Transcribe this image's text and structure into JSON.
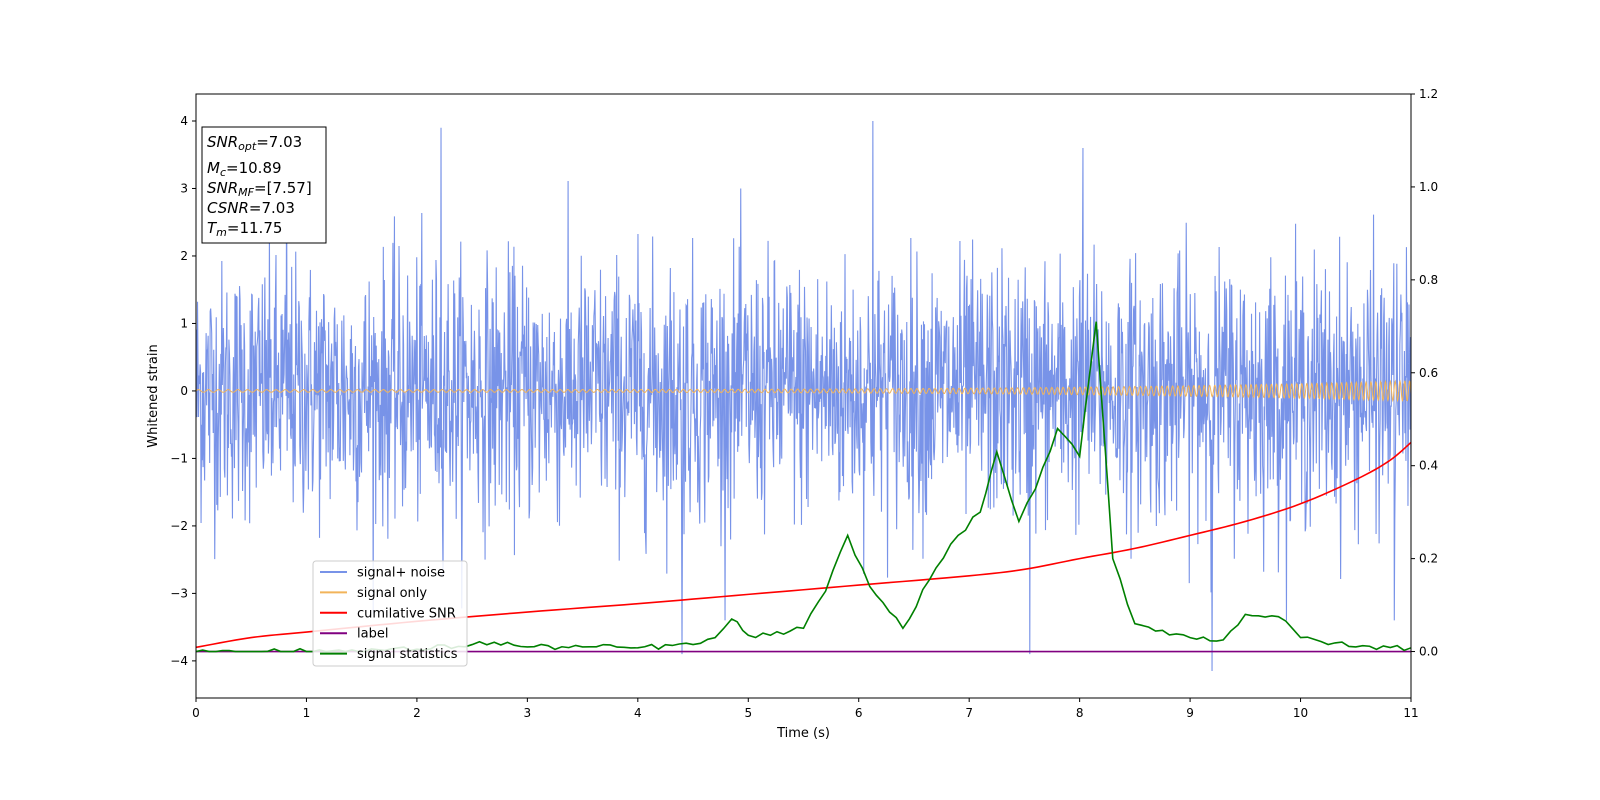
{
  "chart_data": {
    "type": "line",
    "xlabel": "Time (s)",
    "ylabel": "Whitened strain",
    "xlim": [
      0,
      11
    ],
    "ylim": [
      -4.55,
      4.4
    ],
    "y2lim": [
      -0.1,
      1.2
    ],
    "xticks": [
      "0",
      "1",
      "2",
      "3",
      "4",
      "5",
      "6",
      "7",
      "8",
      "9",
      "10",
      "11"
    ],
    "yticks": [
      "4",
      "3",
      "2",
      "1",
      "0",
      "−1",
      "−2",
      "−3",
      "−4"
    ],
    "y2ticks": [
      "1.2",
      "1.0",
      "0.8",
      "0.6",
      "0.4",
      "0.2",
      "0.0"
    ],
    "grid": false,
    "legend_position": "lower-left",
    "stats_box": [
      {
        "sym": "SNR",
        "sub": "opt",
        "text": "=7.03"
      },
      {
        "sym": "M",
        "sub": "c",
        "text": "=10.89"
      },
      {
        "sym": "SNR",
        "sub": "MF",
        "text": "=[7.57]"
      },
      {
        "sym": "CSNR",
        "sub": "",
        "text": "=7.03"
      },
      {
        "sym": "T",
        "sub": "m",
        "text": "=11.75"
      }
    ],
    "series": [
      {
        "name": "signal+ noise",
        "color": "#7893e8",
        "axis": "left",
        "description": "dense gaussian noise, mostly within about ±2.5, spikes to about 4.0 and -4.2",
        "noise_sd": 1.0,
        "spikes": [
          [
            2.22,
            3.9
          ],
          [
            6.13,
            4.0
          ],
          [
            4.4,
            -3.9
          ],
          [
            7.55,
            -3.9
          ],
          [
            9.2,
            -4.15
          ],
          [
            0.82,
            3.65
          ],
          [
            8.03,
            3.6
          ],
          [
            10.85,
            -3.4
          ]
        ]
      },
      {
        "name": "signal only",
        "color": "#f2b45a",
        "axis": "left",
        "description": "chirp oscillation centred on 0, amplitude about 0.02 at t=0 growing to about 0.15 at t=11"
      },
      {
        "name": "cumilative SNR",
        "color": "#ff0000",
        "axis": "right",
        "points": [
          [
            0,
            0.009
          ],
          [
            0.5,
            0.03
          ],
          [
            1,
            0.042
          ],
          [
            2,
            0.065
          ],
          [
            3,
            0.085
          ],
          [
            4,
            0.103
          ],
          [
            5,
            0.123
          ],
          [
            6,
            0.143
          ],
          [
            7,
            0.163
          ],
          [
            7.5,
            0.177
          ],
          [
            8,
            0.2
          ],
          [
            8.5,
            0.222
          ],
          [
            9,
            0.25
          ],
          [
            9.5,
            0.28
          ],
          [
            10,
            0.318
          ],
          [
            10.5,
            0.37
          ],
          [
            10.8,
            0.41
          ],
          [
            11,
            0.45
          ]
        ]
      },
      {
        "name": "label",
        "color": "#800080",
        "axis": "right",
        "points": [
          [
            0,
            0.0
          ],
          [
            11,
            0.0
          ]
        ]
      },
      {
        "name": "signal statistics",
        "color": "#008000",
        "axis": "right",
        "points": [
          [
            0,
            0.0
          ],
          [
            0.3,
            0.002
          ],
          [
            1,
            0.0
          ],
          [
            2,
            0.005
          ],
          [
            2.5,
            0.015
          ],
          [
            2.7,
            0.02
          ],
          [
            3,
            0.01
          ],
          [
            3.5,
            0.01
          ],
          [
            4,
            0.008
          ],
          [
            4.5,
            0.015
          ],
          [
            4.7,
            0.03
          ],
          [
            4.85,
            0.07
          ],
          [
            5,
            0.035
          ],
          [
            5.2,
            0.035
          ],
          [
            5.5,
            0.05
          ],
          [
            5.7,
            0.13
          ],
          [
            5.9,
            0.25
          ],
          [
            6.1,
            0.14
          ],
          [
            6.4,
            0.05
          ],
          [
            6.7,
            0.18
          ],
          [
            6.9,
            0.25
          ],
          [
            7.1,
            0.3
          ],
          [
            7.25,
            0.43
          ],
          [
            7.45,
            0.28
          ],
          [
            7.6,
            0.35
          ],
          [
            7.8,
            0.48
          ],
          [
            8.0,
            0.42
          ],
          [
            8.15,
            0.71
          ],
          [
            8.3,
            0.2
          ],
          [
            8.5,
            0.06
          ],
          [
            9,
            0.03
          ],
          [
            9.3,
            0.025
          ],
          [
            9.5,
            0.08
          ],
          [
            9.8,
            0.075
          ],
          [
            10,
            0.03
          ],
          [
            10.5,
            0.01
          ],
          [
            11,
            0.008
          ]
        ]
      }
    ]
  }
}
